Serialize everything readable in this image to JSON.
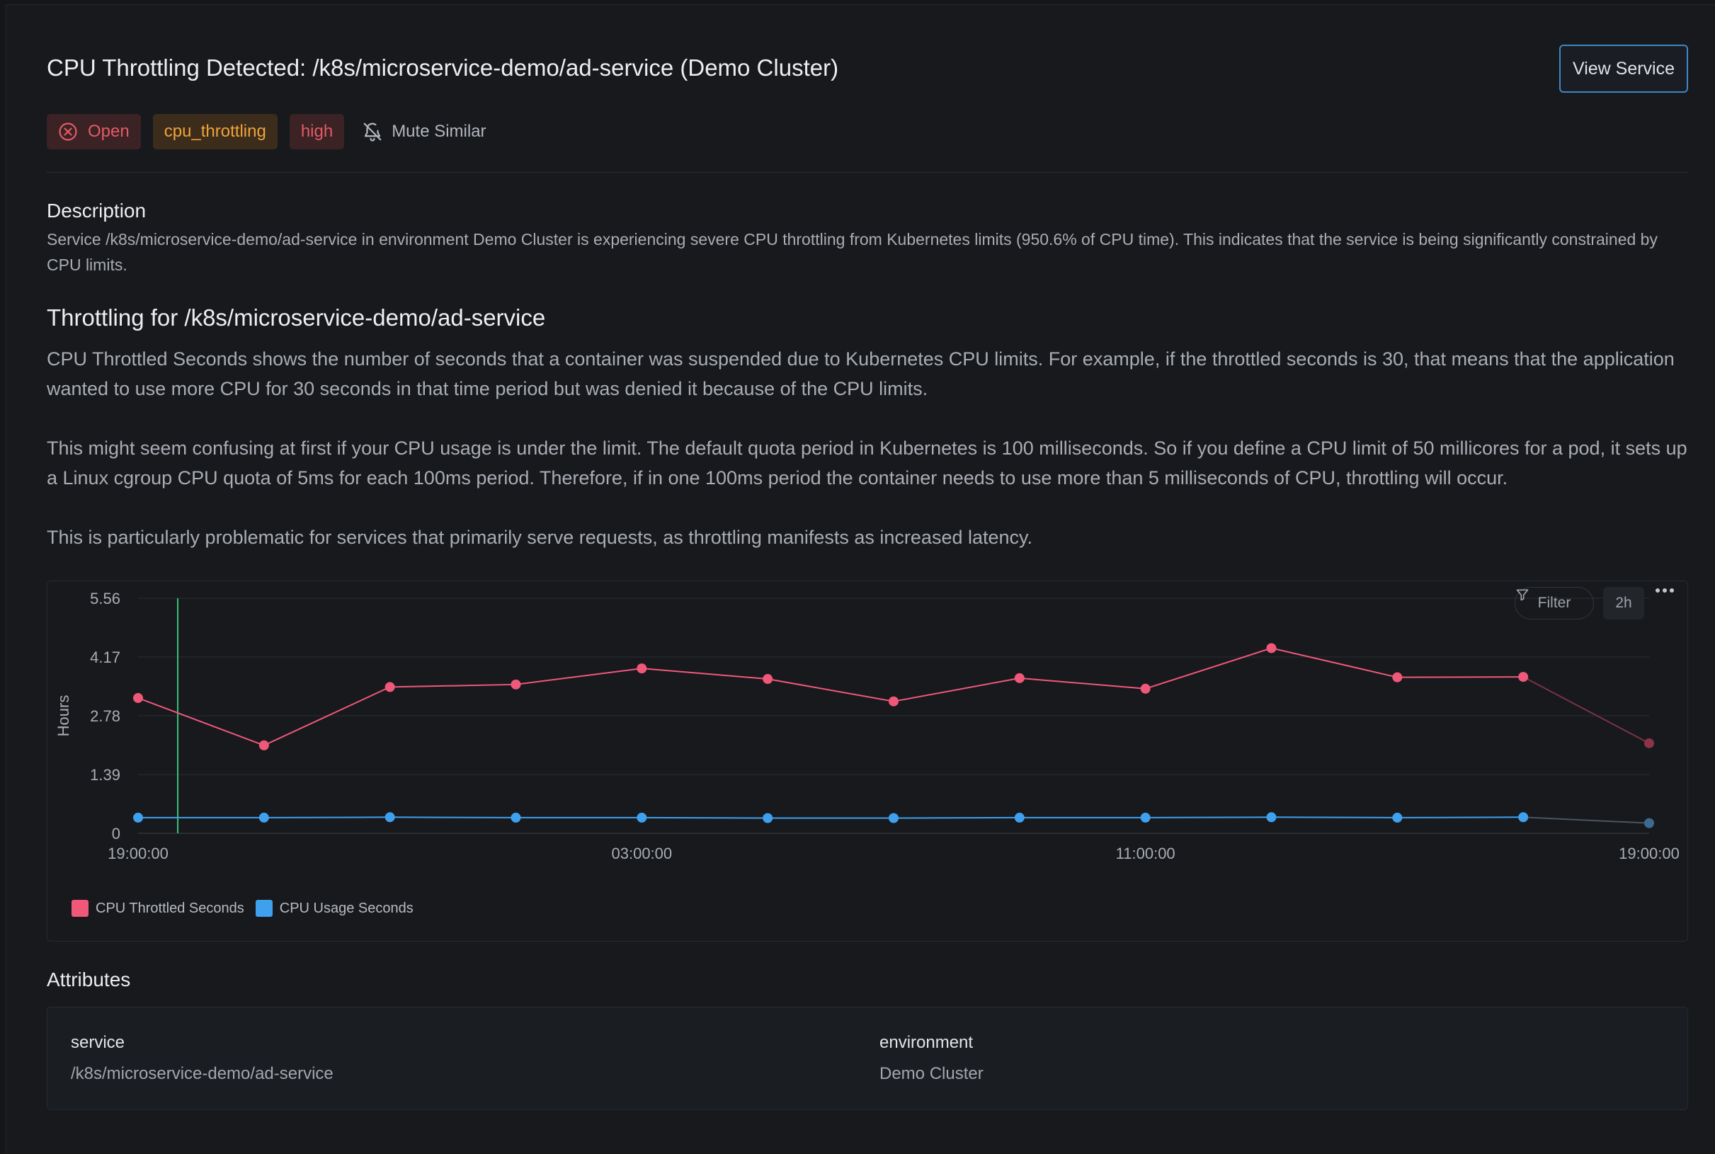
{
  "header": {
    "title": "CPU Throttling Detected: /k8s/microservice-demo/ad-service (Demo Cluster)",
    "view_button": "View Service"
  },
  "badges": {
    "status": "Open",
    "type": "cpu_throttling",
    "severity": "high",
    "mute": "Mute Similar"
  },
  "description": {
    "heading": "Description",
    "text": "Service /k8s/microservice-demo/ad-service in environment Demo Cluster is experiencing severe CPU throttling from Kubernetes limits (950.6% of CPU time). This indicates that the service is being significantly constrained by CPU limits."
  },
  "throttling": {
    "heading": "Throttling for /k8s/microservice-demo/ad-service",
    "para1": "CPU Throttled Seconds shows the number of seconds that a container was suspended due to Kubernetes CPU limits. For example, if the throttled seconds is 30, that means that the application wanted to use more CPU for 30 seconds in that time period but was denied it because of the CPU limits.",
    "para2": "This might seem confusing at first if your CPU usage is under the limit. The default quota period in Kubernetes is 100 milliseconds. So if you define a CPU limit of 50 millicores for a pod, it sets up a Linux cgroup CPU quota of 5ms for each 100ms period. Therefore, if in one 100ms period the container needs to use more than 5 milliseconds of CPU, throttling will occur.",
    "para3": "This is particularly problematic for services that primarily serve requests, as throttling manifests as increased latency."
  },
  "chart_toolbar": {
    "filter": "Filter",
    "range": "2h"
  },
  "chart_data": {
    "type": "line",
    "ylabel": "Hours",
    "xlabel": "",
    "ylim": [
      0,
      5.56
    ],
    "yticks": [
      "0",
      "1.39",
      "2.78",
      "4.17",
      "5.56"
    ],
    "xticks": [
      "19:00:00",
      "03:00:00",
      "11:00:00",
      "19:00:00"
    ],
    "x_hours": [
      0,
      2,
      4,
      6,
      8,
      10,
      12,
      14,
      16,
      18,
      20,
      22,
      24
    ],
    "series": [
      {
        "name": "CPU Throttled Seconds",
        "color": "#f0587a",
        "values": [
          3.2,
          2.08,
          3.46,
          3.52,
          3.9,
          3.65,
          3.12,
          3.67,
          3.42,
          4.38,
          3.69,
          3.7,
          2.13
        ]
      },
      {
        "name": "CPU Usage Seconds",
        "color": "#3fa0ee",
        "values": [
          0.37,
          0.37,
          0.38,
          0.37,
          0.37,
          0.36,
          0.36,
          0.37,
          0.37,
          0.38,
          0.37,
          0.38,
          0.24
        ]
      }
    ]
  },
  "attributes": {
    "heading": "Attributes",
    "items": [
      {
        "key": "service",
        "value": "/k8s/microservice-demo/ad-service"
      },
      {
        "key": "environment",
        "value": "Demo Cluster"
      }
    ]
  }
}
